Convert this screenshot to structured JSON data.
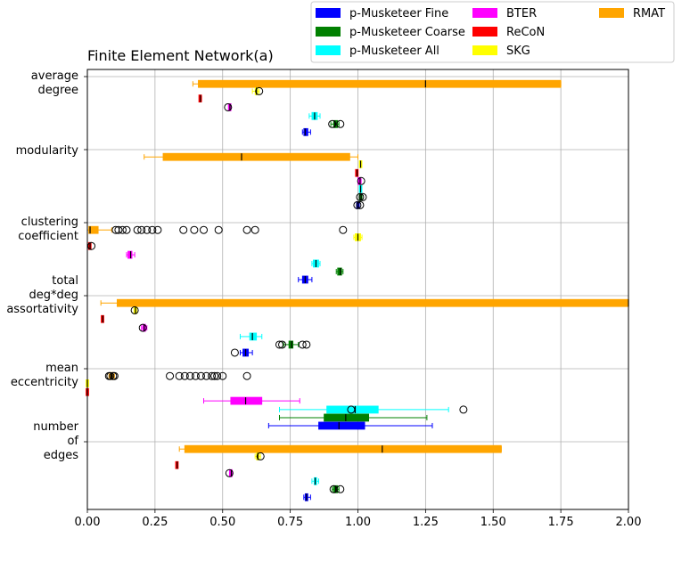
{
  "chart_data": {
    "type": "boxplot",
    "title": "Finite Element Network(a)",
    "xlabel": "",
    "ylabel": "",
    "xlim": [
      0,
      2
    ],
    "x_ticks": [
      "0.00",
      "0.25",
      "0.50",
      "0.75",
      "1.00",
      "1.25",
      "1.50",
      "1.75",
      "2.00"
    ],
    "grid": true,
    "legend": {
      "placement": "upper-right-outside",
      "columns": 3,
      "entries": [
        {
          "name": "p-Musketeer Fine",
          "color": "#0000ff"
        },
        {
          "name": "p-Musketeer Coarse",
          "color": "#008000"
        },
        {
          "name": "p-Musketeer All",
          "color": "#00ffff"
        },
        {
          "name": "BTER",
          "color": "#ff00ff"
        },
        {
          "name": "ReCoN",
          "color": "#ff0000"
        },
        {
          "name": "SKG",
          "color": "#ffff00"
        },
        {
          "name": "RMAT",
          "color": "#ffa500"
        }
      ]
    },
    "categories": [
      {
        "label": [
          "average",
          "degree"
        ],
        "label_pos": 0.0
      },
      {
        "label": [
          "modularity"
        ],
        "label_pos": 1.0
      },
      {
        "label": [
          "clustering",
          "coefficient"
        ],
        "label_pos": 2.0
      },
      {
        "label": [
          "total",
          "deg*deg",
          "assortativity"
        ],
        "label_pos": 3.0
      },
      {
        "label": [
          "mean",
          "eccentricity"
        ],
        "label_pos": 4.0
      },
      {
        "label": [
          "number",
          "of",
          "edges"
        ],
        "label_pos": 5.0
      }
    ],
    "boxes": [
      {
        "series": "RMAT",
        "y": 0.1,
        "wlo": 0.39,
        "q1": 0.41,
        "med": 1.25,
        "q3": 1.75,
        "whi": 1.75,
        "fliers": []
      },
      {
        "series": "SKG",
        "y": 0.2,
        "wlo": 0.61,
        "q1": 0.62,
        "med": 0.625,
        "q3": 0.63,
        "whi": 0.635,
        "fliers": [
          0.635
        ]
      },
      {
        "series": "ReCoN",
        "y": 0.3,
        "wlo": 0.415,
        "q1": 0.417,
        "med": 0.418,
        "q3": 0.42,
        "whi": 0.422,
        "fliers": []
      },
      {
        "series": "BTER",
        "y": 0.42,
        "wlo": 0.525,
        "q1": 0.526,
        "med": 0.527,
        "q3": 0.528,
        "whi": 0.53,
        "fliers": [
          0.52
        ]
      },
      {
        "series": "p-Musketeer All",
        "y": 0.54,
        "wlo": 0.82,
        "q1": 0.83,
        "med": 0.84,
        "q3": 0.85,
        "whi": 0.86,
        "fliers": []
      },
      {
        "series": "p-Musketeer Coarse",
        "y": 0.65,
        "wlo": 0.9,
        "q1": 0.91,
        "med": 0.915,
        "q3": 0.925,
        "whi": 0.93,
        "fliers": [
          0.905,
          0.935
        ]
      },
      {
        "series": "p-Musketeer Fine",
        "y": 0.76,
        "wlo": 0.795,
        "q1": 0.8,
        "med": 0.805,
        "q3": 0.815,
        "whi": 0.825,
        "fliers": []
      },
      {
        "series": "RMAT",
        "y": 1.1,
        "wlo": 0.21,
        "q1": 0.28,
        "med": 0.57,
        "q3": 0.97,
        "whi": 1.0,
        "fliers": []
      },
      {
        "series": "SKG",
        "y": 1.2,
        "wlo": 1.01,
        "q1": 1.01,
        "med": 1.01,
        "q3": 1.012,
        "whi": 1.013,
        "fliers": []
      },
      {
        "series": "ReCoN",
        "y": 1.32,
        "wlo": 0.995,
        "q1": 0.996,
        "med": 0.997,
        "q3": 0.998,
        "whi": 1.0,
        "fliers": []
      },
      {
        "series": "BTER",
        "y": 1.43,
        "wlo": 1.0,
        "q1": 1.005,
        "med": 1.008,
        "q3": 1.01,
        "whi": 1.012,
        "fliers": [
          1.012
        ]
      },
      {
        "series": "p-Musketeer All",
        "y": 1.54,
        "wlo": 1.01,
        "q1": 1.01,
        "med": 1.01,
        "q3": 1.01,
        "whi": 1.01,
        "fliers": []
      },
      {
        "series": "p-Musketeer Coarse",
        "y": 1.65,
        "wlo": 1.01,
        "q1": 1.01,
        "med": 1.012,
        "q3": 1.014,
        "whi": 1.015,
        "fliers": [
          1.008,
          1.018
        ]
      },
      {
        "series": "p-Musketeer Fine",
        "y": 1.76,
        "wlo": 1.0,
        "q1": 1.0,
        "med": 1.002,
        "q3": 1.004,
        "whi": 1.005,
        "fliers": [
          0.998,
          1.008
        ]
      },
      {
        "series": "RMAT",
        "y": 2.1,
        "wlo": 0.0,
        "q1": 0.005,
        "med": 0.01,
        "q3": 0.04,
        "whi": 0.09,
        "fliers": [
          0.105,
          0.115,
          0.13,
          0.145,
          0.185,
          0.2,
          0.22,
          0.24,
          0.26,
          0.355,
          0.395,
          0.43,
          0.485,
          0.59,
          0.62,
          0.945
        ]
      },
      {
        "series": "SKG",
        "y": 2.2,
        "wlo": 0.985,
        "q1": 0.99,
        "med": 1.0,
        "q3": 1.01,
        "whi": 1.015,
        "fliers": []
      },
      {
        "series": "ReCoN",
        "y": 2.32,
        "wlo": 0.008,
        "q1": 0.009,
        "med": 0.01,
        "q3": 0.011,
        "whi": 0.012,
        "fliers": [
          0.015
        ]
      },
      {
        "series": "BTER",
        "y": 2.44,
        "wlo": 0.145,
        "q1": 0.15,
        "med": 0.16,
        "q3": 0.165,
        "whi": 0.175,
        "fliers": []
      },
      {
        "series": "p-Musketeer All",
        "y": 2.56,
        "wlo": 0.83,
        "q1": 0.835,
        "med": 0.845,
        "q3": 0.855,
        "whi": 0.86,
        "fliers": []
      },
      {
        "series": "p-Musketeer Coarse",
        "y": 2.67,
        "wlo": 0.92,
        "q1": 0.925,
        "med": 0.935,
        "q3": 0.94,
        "whi": 0.945,
        "fliers": []
      },
      {
        "series": "p-Musketeer Fine",
        "y": 2.78,
        "wlo": 0.78,
        "q1": 0.795,
        "med": 0.805,
        "q3": 0.815,
        "whi": 0.83,
        "fliers": []
      },
      {
        "series": "RMAT",
        "y": 3.1,
        "wlo": 0.05,
        "q1": 0.11,
        "med": 2.0,
        "q3": 2.0,
        "whi": 2.0,
        "fliers": []
      },
      {
        "series": "SKG",
        "y": 3.2,
        "wlo": 0.175,
        "q1": 0.177,
        "med": 0.178,
        "q3": 0.18,
        "whi": 0.182,
        "fliers": [
          0.175
        ]
      },
      {
        "series": "ReCoN",
        "y": 3.32,
        "wlo": 0.055,
        "q1": 0.056,
        "med": 0.057,
        "q3": 0.058,
        "whi": 0.059,
        "fliers": []
      },
      {
        "series": "BTER",
        "y": 3.44,
        "wlo": 0.2,
        "q1": 0.205,
        "med": 0.21,
        "q3": 0.215,
        "whi": 0.22,
        "fliers": [
          0.205
        ]
      },
      {
        "series": "p-Musketeer All",
        "y": 3.56,
        "wlo": 0.565,
        "q1": 0.6,
        "med": 0.61,
        "q3": 0.625,
        "whi": 0.645,
        "fliers": []
      },
      {
        "series": "p-Musketeer Coarse",
        "y": 3.67,
        "wlo": 0.725,
        "q1": 0.745,
        "med": 0.755,
        "q3": 0.76,
        "whi": 0.78,
        "fliers": [
          0.71,
          0.72,
          0.795,
          0.81
        ]
      },
      {
        "series": "p-Musketeer Fine",
        "y": 3.78,
        "wlo": 0.565,
        "q1": 0.575,
        "med": 0.585,
        "q3": 0.595,
        "whi": 0.61,
        "fliers": [
          0.545
        ]
      },
      {
        "series": "RMAT",
        "y": 4.1,
        "wlo": 0.08,
        "q1": 0.085,
        "med": 0.09,
        "q3": 0.095,
        "whi": 0.1,
        "fliers": [
          0.08,
          0.085,
          0.095,
          0.1,
          0.305,
          0.34,
          0.36,
          0.38,
          0.4,
          0.42,
          0.44,
          0.46,
          0.47,
          0.48,
          0.5,
          0.59
        ]
      },
      {
        "series": "SKG",
        "y": 4.2,
        "wlo": 0.0,
        "q1": 0.0,
        "med": 0.0,
        "q3": 0.0,
        "whi": 0.0,
        "fliers": []
      },
      {
        "series": "ReCoN",
        "y": 4.32,
        "wlo": 0.0,
        "q1": 0.0,
        "med": 0.0,
        "q3": 0.0,
        "whi": 0.0,
        "fliers": []
      },
      {
        "series": "BTER",
        "y": 4.44,
        "wlo": 0.43,
        "q1": 0.53,
        "med": 0.585,
        "q3": 0.645,
        "whi": 0.785,
        "fliers": []
      },
      {
        "series": "p-Musketeer All",
        "y": 4.56,
        "wlo": 0.71,
        "q1": 0.885,
        "med": 0.99,
        "q3": 1.075,
        "whi": 1.335,
        "fliers": [
          0.975,
          1.39
        ]
      },
      {
        "series": "p-Musketeer Coarse",
        "y": 4.67,
        "wlo": 0.71,
        "q1": 0.875,
        "med": 0.955,
        "q3": 1.04,
        "whi": 1.255,
        "fliers": []
      },
      {
        "series": "p-Musketeer Fine",
        "y": 4.78,
        "wlo": 0.67,
        "q1": 0.855,
        "med": 0.93,
        "q3": 1.025,
        "whi": 1.275,
        "fliers": []
      },
      {
        "series": "RMAT",
        "y": 5.1,
        "wlo": 0.34,
        "q1": 0.36,
        "med": 1.09,
        "q3": 1.53,
        "whi": 1.53,
        "fliers": []
      },
      {
        "series": "SKG",
        "y": 5.2,
        "wlo": 0.62,
        "q1": 0.625,
        "med": 0.63,
        "q3": 0.635,
        "whi": 0.64,
        "fliers": [
          0.64
        ]
      },
      {
        "series": "ReCoN",
        "y": 5.32,
        "wlo": 0.33,
        "q1": 0.331,
        "med": 0.332,
        "q3": 0.333,
        "whi": 0.334,
        "fliers": []
      },
      {
        "series": "BTER",
        "y": 5.43,
        "wlo": 0.528,
        "q1": 0.53,
        "med": 0.532,
        "q3": 0.534,
        "whi": 0.536,
        "fliers": [
          0.525
        ]
      },
      {
        "series": "p-Musketeer All",
        "y": 5.54,
        "wlo": 0.83,
        "q1": 0.838,
        "med": 0.842,
        "q3": 0.848,
        "whi": 0.855,
        "fliers": []
      },
      {
        "series": "p-Musketeer Coarse",
        "y": 5.65,
        "wlo": 0.905,
        "q1": 0.91,
        "med": 0.918,
        "q3": 0.925,
        "whi": 0.93,
        "fliers": [
          0.91,
          0.935
        ]
      },
      {
        "series": "p-Musketeer Fine",
        "y": 5.76,
        "wlo": 0.8,
        "q1": 0.805,
        "med": 0.81,
        "q3": 0.815,
        "whi": 0.825,
        "fliers": []
      }
    ]
  }
}
